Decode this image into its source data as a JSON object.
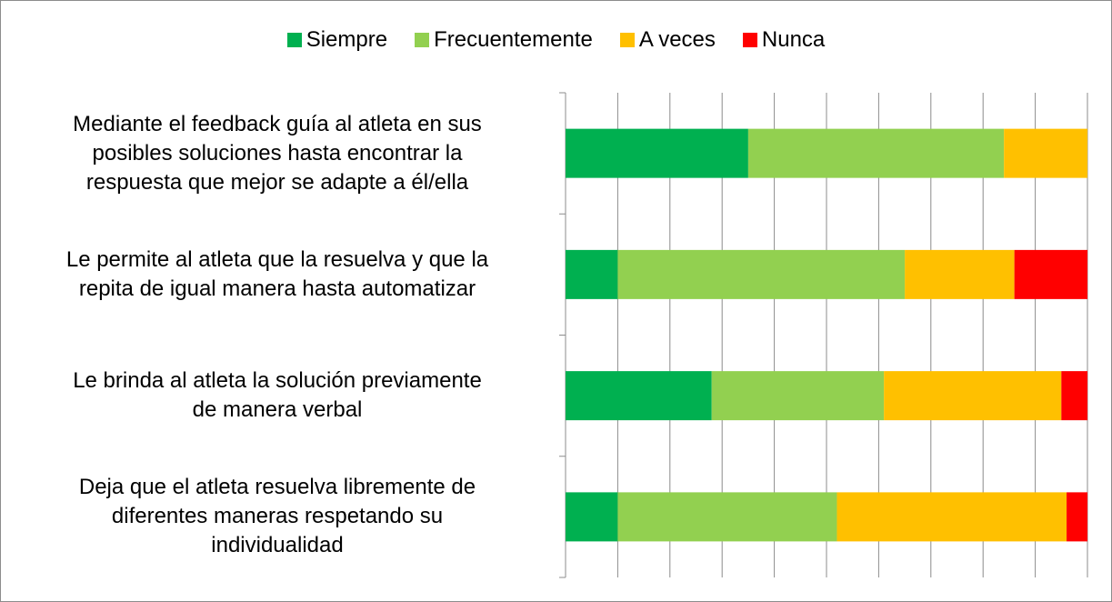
{
  "chart_data": {
    "type": "stacked-bar-horizontal",
    "categories": [
      "Mediante el feedback guía al atleta en sus\nposibles soluciones hasta encontrar la\nrespuesta que mejor se adapte a él/ella",
      "Le permite al atleta que la resuelva y que la\nrepita de igual manera hasta automatizar",
      "Le brinda al atleta la solución previamente\nde manera verbal",
      "Deja que el atleta resuelva libremente de\ndiferentes maneras respetando su\nindividualidad"
    ],
    "series": [
      {
        "name": "Siempre",
        "color": "#00b050",
        "values": [
          35,
          10,
          28,
          10
        ]
      },
      {
        "name": "Frecuentemente",
        "color": "#92d050",
        "values": [
          49,
          55,
          33,
          42
        ]
      },
      {
        "name": "A veces",
        "color": "#ffc000",
        "values": [
          16,
          21,
          34,
          44
        ]
      },
      {
        "name": "Nunca",
        "color": "#ff0000",
        "values": [
          0,
          14,
          5,
          4
        ]
      }
    ],
    "xlim": [
      0,
      100
    ],
    "xticks": [
      0,
      10,
      20,
      30,
      40,
      50,
      60,
      70,
      80,
      90,
      100
    ],
    "grid": true,
    "legend": "top"
  }
}
